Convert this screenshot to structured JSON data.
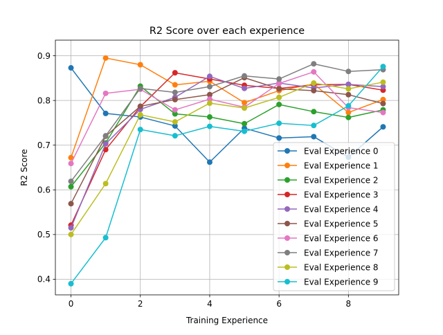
{
  "chart_data": {
    "type": "line",
    "title": "R2 Score over each experience",
    "xlabel": "Training Experience",
    "ylabel": "R2 Score",
    "xlim": [
      -0.45,
      9.45
    ],
    "ylim": [
      0.365,
      0.935
    ],
    "xticks": [
      0,
      2,
      4,
      6,
      8
    ],
    "yticks": [
      0.4,
      0.5,
      0.6,
      0.7,
      0.8,
      0.9
    ],
    "grid": true,
    "legend_position": "lower-right",
    "x": [
      0,
      1,
      2,
      3,
      4,
      5,
      6,
      7,
      8,
      9
    ],
    "series": [
      {
        "name": "Eval Experience 0",
        "color": "#1f77b4",
        "values": [
          0.873,
          0.771,
          0.763,
          0.743,
          0.662,
          0.738,
          0.716,
          0.719,
          0.673,
          0.741
        ]
      },
      {
        "name": "Eval Experience 1",
        "color": "#ff7f0e",
        "values": [
          0.672,
          0.895,
          0.88,
          0.835,
          0.843,
          0.795,
          0.822,
          0.837,
          0.773,
          0.802
        ]
      },
      {
        "name": "Eval Experience 2",
        "color": "#2ca02c",
        "values": [
          0.607,
          0.705,
          0.832,
          0.77,
          0.763,
          0.748,
          0.791,
          0.775,
          0.762,
          0.779
        ]
      },
      {
        "name": "Eval Experience 3",
        "color": "#d62728",
        "values": [
          0.521,
          0.69,
          0.786,
          0.862,
          0.848,
          0.834,
          0.827,
          0.835,
          0.836,
          0.823
        ]
      },
      {
        "name": "Eval Experience 4",
        "color": "#9467bd",
        "values": [
          0.515,
          0.703,
          0.78,
          0.807,
          0.854,
          0.827,
          0.839,
          0.828,
          0.836,
          0.831
        ]
      },
      {
        "name": "Eval Experience 5",
        "color": "#8c564b",
        "values": [
          0.569,
          0.72,
          0.787,
          0.802,
          0.813,
          0.851,
          0.826,
          0.822,
          0.813,
          0.793
        ]
      },
      {
        "name": "Eval Experience 6",
        "color": "#e377c2",
        "values": [
          0.659,
          0.816,
          0.825,
          0.779,
          0.803,
          0.785,
          0.838,
          0.864,
          0.784,
          0.773
        ]
      },
      {
        "name": "Eval Experience 7",
        "color": "#7f7f7f",
        "values": [
          0.619,
          0.721,
          0.827,
          0.818,
          0.831,
          0.855,
          0.848,
          0.882,
          0.865,
          0.869
        ]
      },
      {
        "name": "Eval Experience 8",
        "color": "#bcbd22",
        "values": [
          0.5,
          0.614,
          0.768,
          0.752,
          0.794,
          0.783,
          0.807,
          0.839,
          0.826,
          0.841
        ]
      },
      {
        "name": "Eval Experience 9",
        "color": "#17becf",
        "values": [
          0.39,
          0.493,
          0.735,
          0.721,
          0.742,
          0.731,
          0.749,
          0.744,
          0.788,
          0.876
        ]
      }
    ]
  }
}
